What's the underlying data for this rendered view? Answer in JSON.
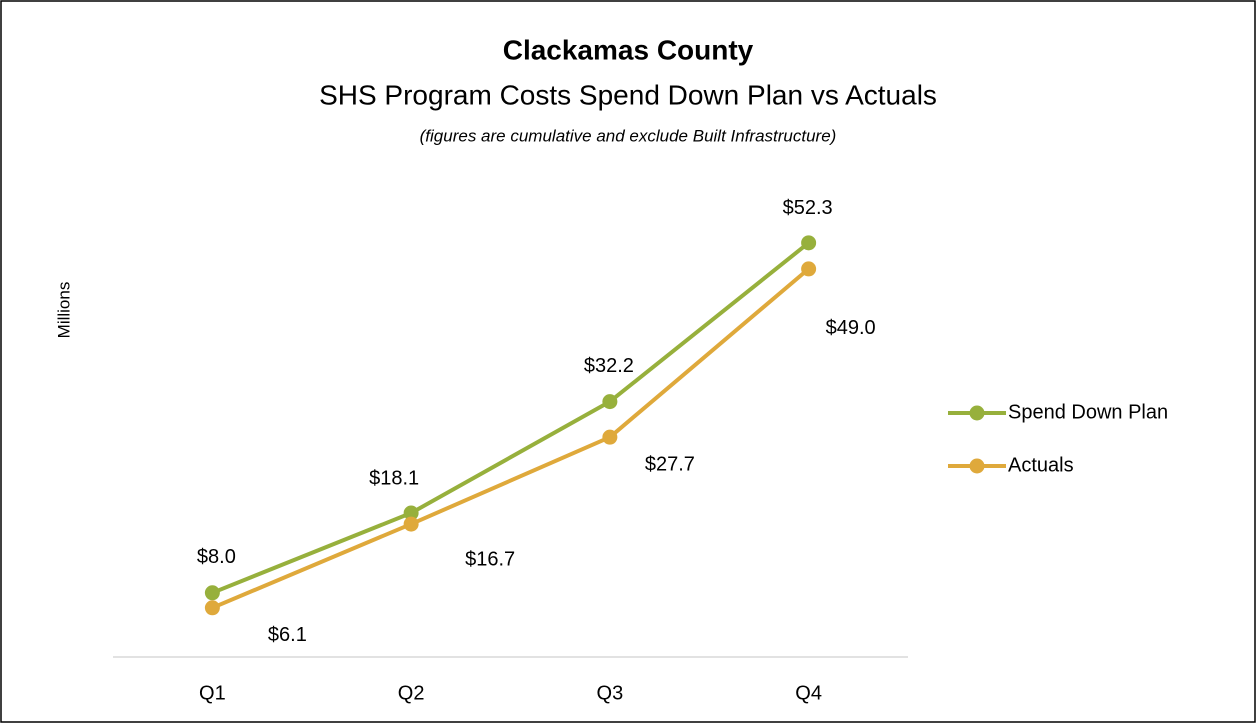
{
  "chart_data": {
    "type": "line",
    "title": "Clackamas County",
    "subtitle": "SHS Program Costs Spend Down Plan vs Actuals",
    "note": "(figures are cumulative and exclude Built Infrastructure)",
    "y_label": "Millions",
    "categories": [
      "Q1",
      "Q2",
      "Q3",
      "Q4"
    ],
    "series": [
      {
        "name": "Spend Down Plan",
        "color": "#97b03c",
        "values": [
          8.0,
          18.1,
          32.2,
          52.3
        ],
        "value_labels": [
          "$8.0",
          "$18.1",
          "$32.2",
          "$52.3"
        ]
      },
      {
        "name": "Actuals",
        "color": "#dfa93b",
        "values": [
          6.1,
          16.7,
          27.7,
          49.0
        ],
        "value_labels": [
          "$6.1",
          "$16.7",
          "$27.7",
          "$49.0"
        ]
      }
    ],
    "ylim": [
      0,
      60
    ],
    "legend": "right"
  }
}
